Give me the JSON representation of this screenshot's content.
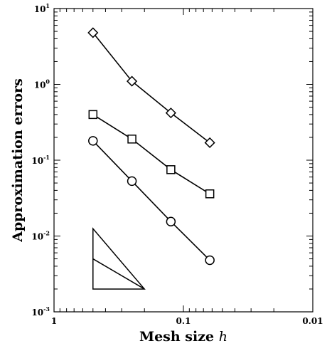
{
  "chart_data": {
    "type": "line",
    "title": "",
    "xlabel": "Mesh size",
    "xlabel_symbol": "h",
    "ylabel": "Approximation errors",
    "x_scale": "log",
    "y_scale": "log",
    "x_reversed": true,
    "xlim": [
      1,
      0.01
    ],
    "ylim": [
      0.001,
      10
    ],
    "x_ticks": [
      {
        "value": 1,
        "label": "1"
      },
      {
        "value": 0.1,
        "label": "0.1"
      },
      {
        "value": 0.01,
        "label": "0.01"
      }
    ],
    "y_ticks": [
      {
        "value": 0.001,
        "base": "10",
        "exp": "-3"
      },
      {
        "value": 0.01,
        "base": "10",
        "exp": "-2"
      },
      {
        "value": 0.1,
        "base": "10",
        "exp": "-1"
      },
      {
        "value": 1,
        "base": "10",
        "exp": "0"
      },
      {
        "value": 10,
        "base": "10",
        "exp": "1"
      }
    ],
    "grid": false,
    "legend": "none",
    "series": [
      {
        "marker": "diamond",
        "color": "#000000",
        "x": [
          0.5,
          0.25,
          0.125,
          0.0625
        ],
        "y": [
          4.8,
          1.1,
          0.42,
          0.17
        ]
      },
      {
        "marker": "square",
        "color": "#000000",
        "x": [
          0.5,
          0.25,
          0.125,
          0.0625
        ],
        "y": [
          0.4,
          0.19,
          0.075,
          0.036
        ]
      },
      {
        "marker": "circle",
        "color": "#000000",
        "x": [
          0.5,
          0.25,
          0.125,
          0.0625
        ],
        "y": [
          0.18,
          0.053,
          0.0155,
          0.0048
        ]
      }
    ],
    "slope_triangle": {
      "x_left": 0.5,
      "x_right": 0.2,
      "y_bottom": 0.002,
      "y_top": 0.0125,
      "y_mid": 0.005
    }
  }
}
